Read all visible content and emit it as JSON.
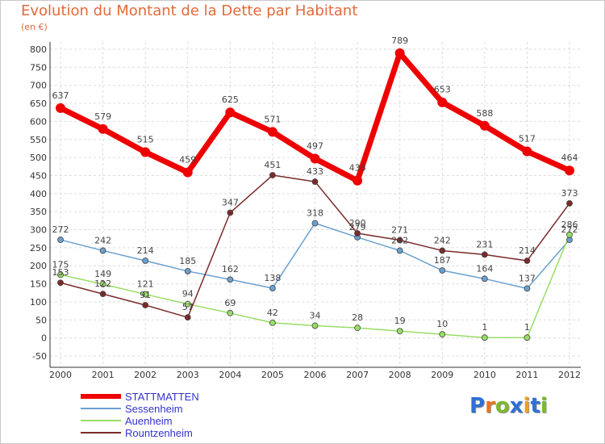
{
  "title": "Evolution du Montant de la Dette par Habitant",
  "subtitle": "(en €)",
  "logo": {
    "text": "Proxiti",
    "letter_colors": [
      "#2f6fd6",
      "#e8741e",
      "#7cb82f",
      "#2f6fd6",
      "#e8a21e",
      "#2f6fd6",
      "#7cb82f"
    ]
  },
  "chart_data": {
    "type": "line",
    "x": [
      "2000",
      "2001",
      "2002",
      "2003",
      "2004",
      "2005",
      "2006",
      "2007",
      "2008",
      "2009",
      "2010",
      "2011",
      "2012"
    ],
    "yticks": [
      "800",
      "750",
      "700",
      "650",
      "600",
      "550",
      "500",
      "450",
      "400",
      "350",
      "300",
      "250",
      "200",
      "150",
      "100",
      "50",
      "0",
      "-50"
    ],
    "ylim": [
      -50,
      800
    ],
    "grid": true,
    "legend_position": "bottom-left",
    "series": [
      {
        "name": "STATTMATTEN",
        "color": "#ee0000",
        "thick": true,
        "values": [
          637,
          579,
          515,
          459,
          625,
          571,
          497,
          436,
          789,
          653,
          588,
          517,
          464
        ],
        "labels": [
          "637",
          "579",
          "515",
          "459",
          "625",
          "571",
          "497",
          "436",
          "789",
          "653",
          "588",
          "517",
          "464"
        ]
      },
      {
        "name": "Sessenheim",
        "color": "#6aa0d0",
        "thick": false,
        "values": [
          272,
          242,
          214,
          185,
          162,
          138,
          318,
          279,
          242,
          187,
          164,
          137,
          272
        ],
        "labels": [
          "272",
          "242",
          "214",
          "185",
          "162",
          "138",
          "318",
          "279",
          "242",
          "187",
          "164",
          "137",
          "272"
        ]
      },
      {
        "name": "Auenheim",
        "color": "#99dd66",
        "thick": false,
        "values": [
          175,
          149,
          121,
          94,
          69,
          42,
          34,
          28,
          19,
          10,
          1,
          1,
          286
        ],
        "labels": [
          "175",
          "149",
          "121",
          "94",
          "69",
          "42",
          "34",
          "28",
          "19",
          "10",
          "1",
          "1",
          "286"
        ]
      },
      {
        "name": "Rountzenheim",
        "color": "#7a2a2a",
        "thick": false,
        "values": [
          153,
          122,
          91,
          57,
          347,
          451,
          433,
          290,
          271,
          242,
          231,
          214,
          373
        ],
        "labels": [
          "153",
          "122",
          "91",
          "57",
          "347",
          "451",
          "433",
          "290",
          "271",
          "242",
          "231",
          "214",
          "373"
        ]
      }
    ]
  }
}
